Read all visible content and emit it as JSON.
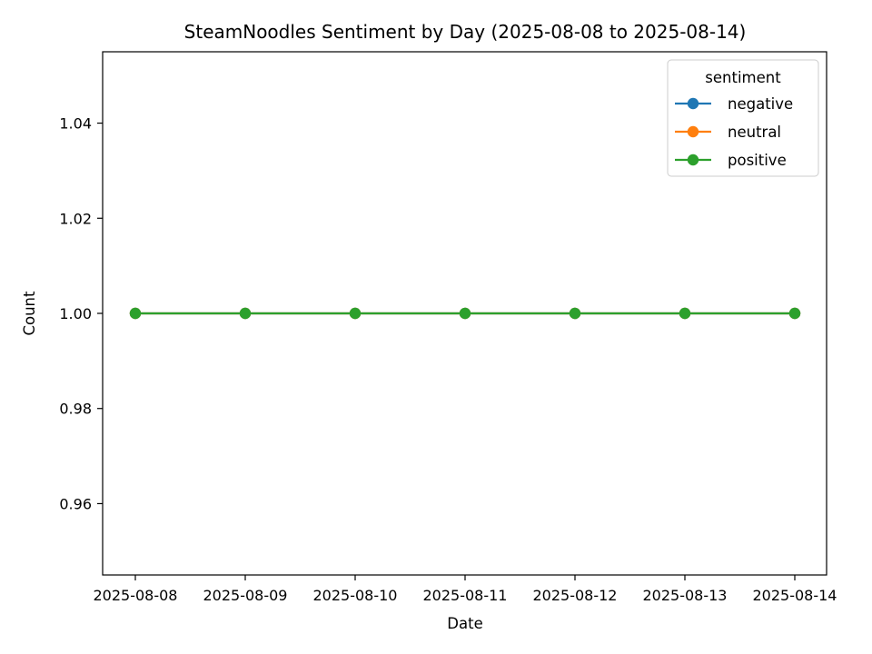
{
  "chart_data": {
    "type": "line",
    "title": "SteamNoodles Sentiment by Day (2025-08-08 to 2025-08-14)",
    "xlabel": "Date",
    "ylabel": "Count",
    "categories": [
      "2025-08-08",
      "2025-08-09",
      "2025-08-10",
      "2025-08-11",
      "2025-08-12",
      "2025-08-13",
      "2025-08-14"
    ],
    "ylim": [
      0.945,
      1.055
    ],
    "yticks": [
      "0.96",
      "0.98",
      "1.00",
      "1.02",
      "1.04"
    ],
    "legend": {
      "title": "sentiment",
      "placement": "top-right"
    },
    "grid": false,
    "series": [
      {
        "name": "negative",
        "color": "#1f77b4",
        "values": [
          1,
          1,
          1,
          1,
          1,
          1,
          1
        ]
      },
      {
        "name": "neutral",
        "color": "#ff7f0e",
        "values": [
          1,
          1,
          1,
          1,
          1,
          1,
          1
        ]
      },
      {
        "name": "positive",
        "color": "#2ca02c",
        "values": [
          1,
          1,
          1,
          1,
          1,
          1,
          1
        ]
      }
    ]
  }
}
